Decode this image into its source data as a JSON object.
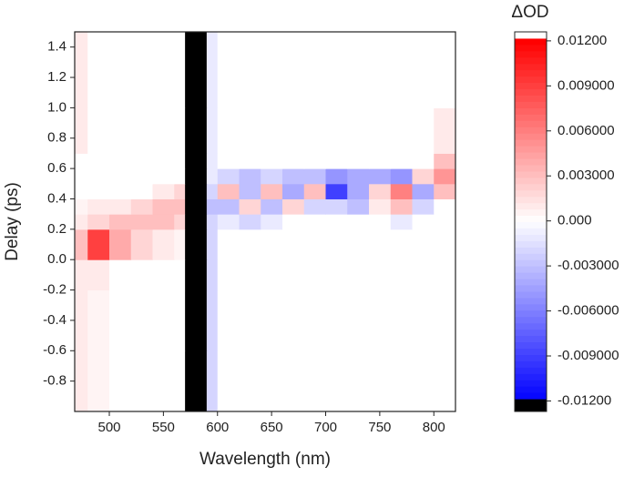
{
  "chart_data": {
    "type": "heatmap",
    "xlabel": "Wavelength (nm)",
    "ylabel": "Delay (ps)",
    "colorbar_title": "ΔOD",
    "x_edges": [
      468,
      480,
      500,
      520,
      540,
      560,
      570,
      590,
      600,
      620,
      640,
      660,
      680,
      700,
      720,
      740,
      760,
      780,
      800,
      820
    ],
    "y_edges": [
      -1.0,
      -0.6,
      -0.2,
      0,
      0.2,
      0.3,
      0.4,
      0.5,
      0.6,
      0.7,
      1.0,
      1.5
    ],
    "z": [
      [
        0.001,
        0.0005,
        0,
        0,
        0,
        0,
        -0.013,
        -0.002,
        0,
        0,
        0,
        0,
        0,
        0,
        0,
        0,
        0,
        0,
        0
      ],
      [
        0.001,
        0.0005,
        0,
        0,
        0,
        0,
        -0.013,
        -0.002,
        0,
        0,
        0,
        0,
        0,
        0,
        0,
        0,
        0,
        0,
        0
      ],
      [
        0.001,
        0.001,
        0,
        0,
        0,
        0,
        -0.013,
        -0.002,
        0,
        0,
        0,
        0,
        0,
        0,
        0,
        0,
        0,
        0,
        0
      ],
      [
        0.003,
        0.009,
        0.004,
        0.002,
        0.001,
        0.0005,
        -0.013,
        -0.002,
        0,
        0,
        0,
        0,
        0,
        0,
        0,
        0,
        0,
        0,
        0
      ],
      [
        0.001,
        0.002,
        0.003,
        0.003,
        0.003,
        0.002,
        -0.013,
        -0.002,
        -0.001,
        -0.002,
        -0.001,
        0,
        0,
        0,
        0,
        0,
        -0.001,
        0,
        0
      ],
      [
        0.0005,
        0.001,
        0.001,
        0.002,
        0.003,
        0.003,
        -0.013,
        -0.003,
        -0.003,
        0.002,
        -0.003,
        0.002,
        -0.002,
        -0.002,
        -0.003,
        0.001,
        0.003,
        -0.002,
        0
      ],
      [
        0,
        0,
        0,
        0,
        0.001,
        0.002,
        -0.013,
        -0.002,
        0.003,
        -0.003,
        0.003,
        -0.004,
        0.003,
        -0.009,
        -0.004,
        0.002,
        0.006,
        -0.004,
        0.003
      ],
      [
        0,
        0,
        0,
        0,
        0,
        0,
        -0.013,
        -0.001,
        -0.002,
        -0.003,
        -0.002,
        -0.003,
        -0.003,
        -0.005,
        -0.004,
        -0.004,
        -0.005,
        0.002,
        0.005
      ],
      [
        0,
        0,
        0,
        0,
        0,
        0,
        -0.013,
        -0.001,
        0,
        0,
        0,
        0,
        0,
        0,
        0,
        0,
        0,
        0,
        0.003
      ],
      [
        0.001,
        0,
        0,
        0,
        0,
        0,
        -0.013,
        -0.001,
        0,
        0,
        0,
        0,
        0,
        0,
        0,
        0,
        0,
        0,
        0.001
      ],
      [
        0.001,
        0,
        0,
        0,
        0,
        0,
        -0.013,
        -0.001,
        0,
        0,
        0,
        0,
        0,
        0,
        0,
        0,
        0,
        0,
        0
      ]
    ],
    "xlim": [
      468,
      820
    ],
    "xticks": [
      500,
      550,
      600,
      650,
      700,
      750,
      800
    ],
    "ylim": [
      -1.0,
      1.5
    ],
    "yticks": [
      {
        "value": 1.4,
        "label": "1.4"
      },
      {
        "value": 1.2,
        "label": "1.2"
      },
      {
        "value": 1.0,
        "label": "1.0"
      },
      {
        "value": 0.8,
        "label": "0.8"
      },
      {
        "value": 0.6,
        "label": "0.6"
      },
      {
        "value": 0.4,
        "label": "0.4"
      },
      {
        "value": 0.2,
        "label": "0.2"
      },
      {
        "value": 0.0,
        "label": "0.0"
      },
      {
        "value": -0.2,
        "label": "-0.2"
      },
      {
        "value": -0.4,
        "label": "-0.4"
      },
      {
        "value": -0.6,
        "label": "-0.6"
      },
      {
        "value": -0.8,
        "label": "-0.8"
      }
    ],
    "zlim": [
      -0.0127,
      0.0126
    ],
    "zticks": [
      {
        "value": 0.012,
        "label": "0.01200"
      },
      {
        "value": 0.009,
        "label": "0.009000"
      },
      {
        "value": 0.006,
        "label": "0.006000"
      },
      {
        "value": 0.003,
        "label": "0.003000"
      },
      {
        "value": 0,
        "label": "0.000"
      },
      {
        "value": -0.003,
        "label": "-0.003000"
      },
      {
        "value": -0.006,
        "label": "-0.006000"
      },
      {
        "value": -0.009,
        "label": "-0.009000"
      },
      {
        "value": -0.012,
        "label": "-0.01200"
      }
    ],
    "colors": {
      "positive": "#ff0000",
      "negative": "#0000ff",
      "under": "#000000",
      "over": "#ffffff"
    }
  }
}
